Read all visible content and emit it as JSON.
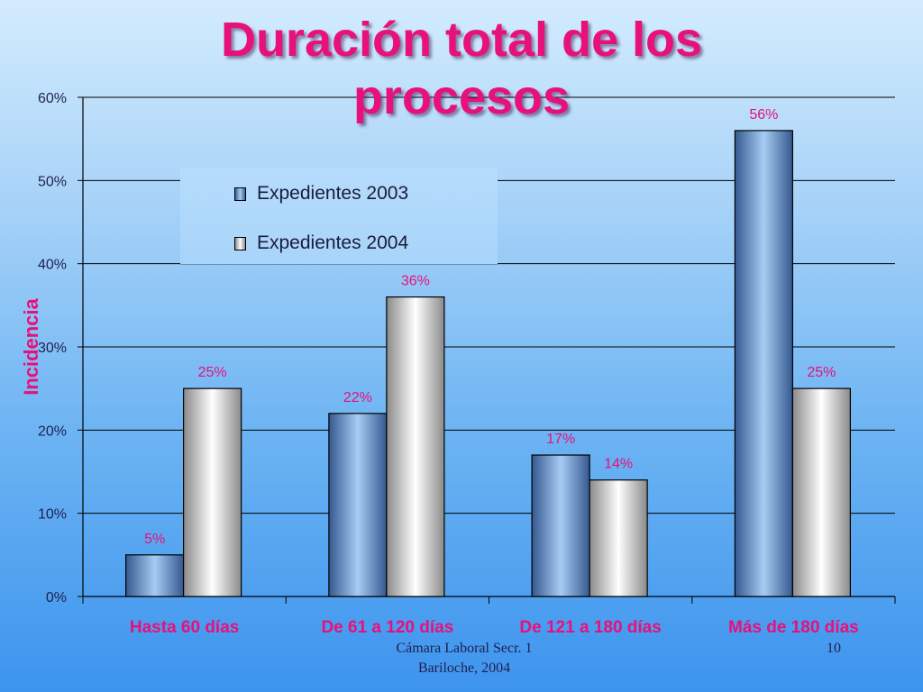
{
  "slide": {
    "title_line1": "Duración total de los",
    "title_line2": "procesos",
    "footer_line1": "Cámara Laboral Secr. 1",
    "footer_line2": "Bariloche, 2004",
    "page_number": "10"
  },
  "colors": {
    "title": "#e8107a",
    "axis_title": "#e8107a",
    "data_label": "#e8107a",
    "category_label": "#e8107a",
    "tick_label": "#1f1f4f",
    "series_2003": "#6aa1e6",
    "series_2004": "#e6e6e6"
  },
  "chart_data": {
    "type": "bar",
    "title": "Duración total de los procesos",
    "xlabel": "",
    "ylabel": "Incidencia",
    "categories": [
      "Hasta 60 días",
      "De 61 a 120 días",
      "De 121 a 180 días",
      "Más de 180 días"
    ],
    "series": [
      {
        "name": "Expedientes 2003",
        "values": [
          0.05,
          0.22,
          0.17,
          0.56
        ],
        "labels": [
          "5%",
          "22%",
          "17%",
          "56%"
        ]
      },
      {
        "name": "Expedientes 2004",
        "values": [
          0.25,
          0.36,
          0.14,
          0.25
        ],
        "labels": [
          "25%",
          "36%",
          "14%",
          "25%"
        ]
      }
    ],
    "ylim": [
      0,
      0.6
    ],
    "yticks": [
      0,
      0.1,
      0.2,
      0.3,
      0.4,
      0.5,
      0.6
    ],
    "ytick_labels": [
      "0%",
      "10%",
      "20%",
      "30%",
      "40%",
      "50%",
      "60%"
    ],
    "grid": true,
    "legend_position": "top-left"
  }
}
